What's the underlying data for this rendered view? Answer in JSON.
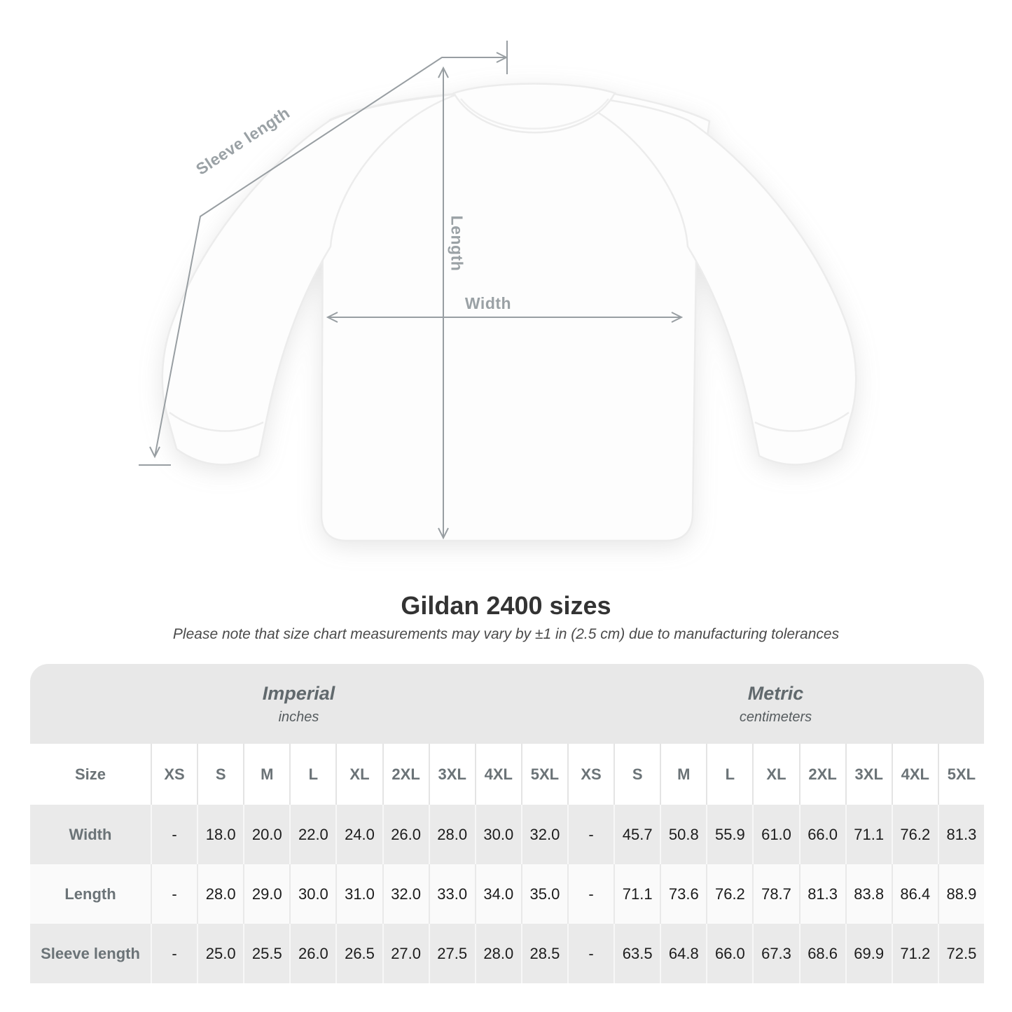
{
  "diagram": {
    "labels": {
      "sleeve_length": "Sleeve length",
      "length": "Length",
      "width": "Width"
    },
    "line_color": "#989ea2",
    "label_color": "#9aa1a5"
  },
  "heading": {
    "title": "Gildan 2400 sizes",
    "subtitle": "Please note that size chart measurements may vary by ±1 in (2.5 cm) due to manufacturing tolerances"
  },
  "table": {
    "unit_groups": [
      {
        "name": "Imperial",
        "unit": "inches"
      },
      {
        "name": "Metric",
        "unit": "centimeters"
      }
    ],
    "size_col_header": "Size",
    "sizes": [
      "XS",
      "S",
      "M",
      "L",
      "XL",
      "2XL",
      "3XL",
      "4XL",
      "5XL"
    ],
    "rows": [
      {
        "label": "Width",
        "imperial": [
          "-",
          "18.0",
          "20.0",
          "22.0",
          "24.0",
          "26.0",
          "28.0",
          "30.0",
          "32.0"
        ],
        "metric": [
          "-",
          "45.7",
          "50.8",
          "55.9",
          "61.0",
          "66.0",
          "71.1",
          "76.2",
          "81.3"
        ]
      },
      {
        "label": "Length",
        "imperial": [
          "-",
          "28.0",
          "29.0",
          "30.0",
          "31.0",
          "32.0",
          "33.0",
          "34.0",
          "35.0"
        ],
        "metric": [
          "-",
          "71.1",
          "73.6",
          "76.2",
          "78.7",
          "81.3",
          "83.8",
          "86.4",
          "88.9"
        ]
      },
      {
        "label": "Sleeve length",
        "imperial": [
          "-",
          "25.0",
          "25.5",
          "26.0",
          "26.5",
          "27.0",
          "27.5",
          "28.0",
          "28.5"
        ],
        "metric": [
          "-",
          "63.5",
          "64.8",
          "66.0",
          "67.3",
          "68.6",
          "69.9",
          "71.2",
          "72.5"
        ]
      }
    ],
    "colors": {
      "header_band_bg": "#e8e8e8",
      "alt_row_bg": "#eaeaea",
      "light_row_bg": "#fafafa",
      "header_text": "#6b7377",
      "value_text": "#1c1c1c"
    }
  }
}
